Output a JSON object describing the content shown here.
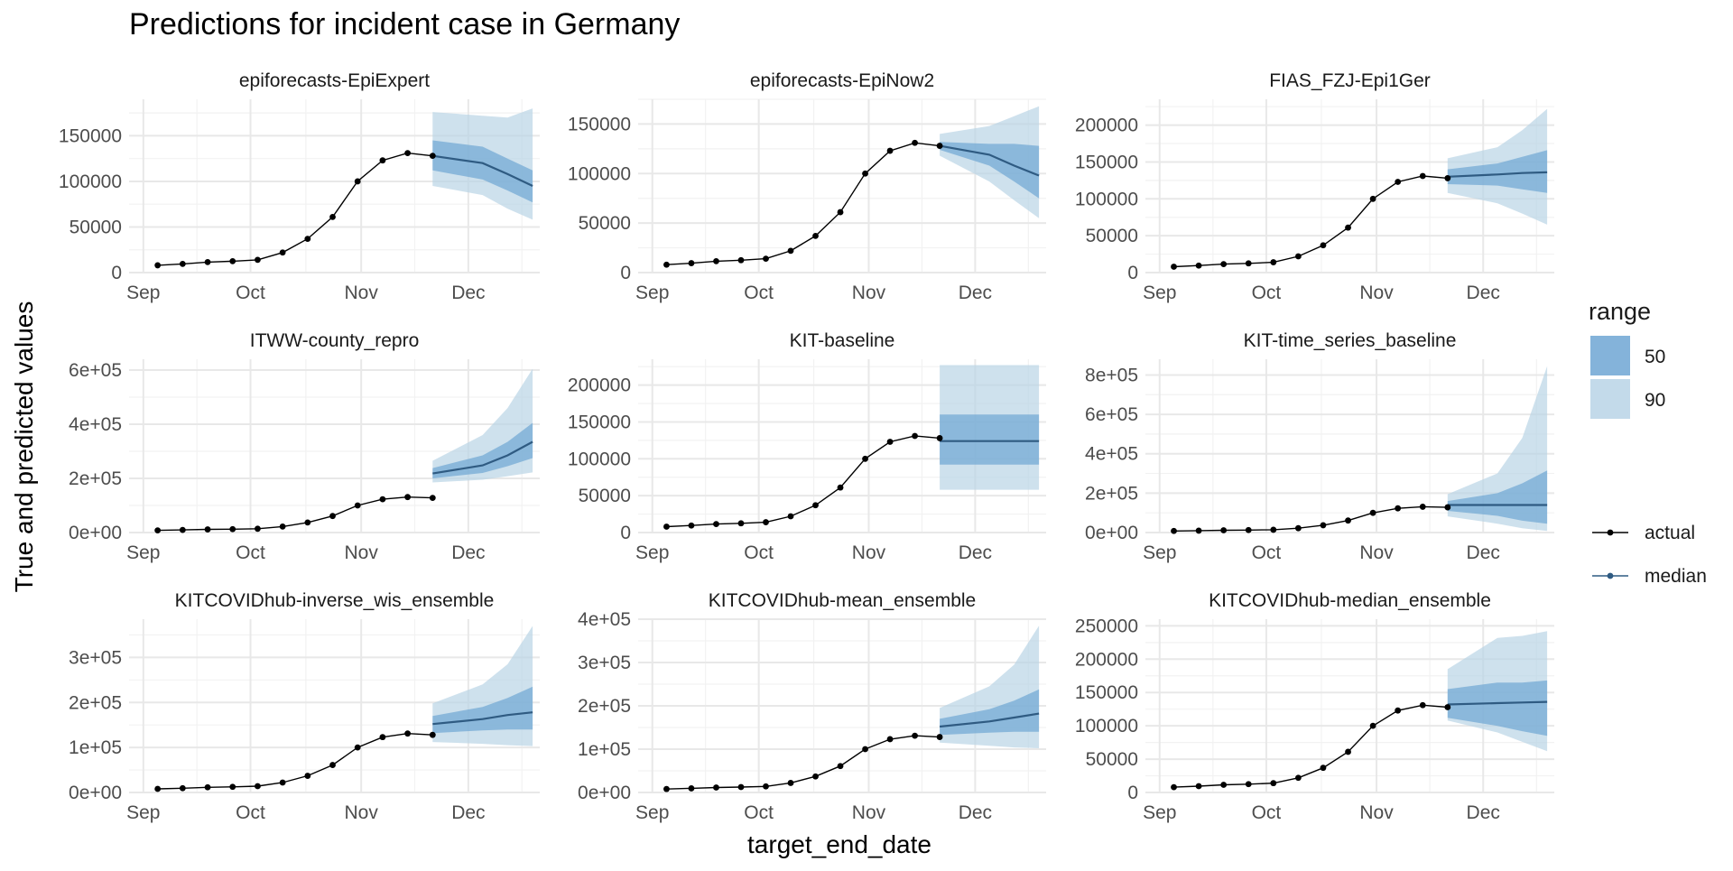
{
  "title": "Predictions for incident case in Germany",
  "xlabel": "target_end_date",
  "ylabel": "True and predicted values",
  "colors": {
    "actual": "#000000",
    "median": "#2F5B82",
    "band50": "#6FA6D3",
    "band90": "#B9D4E6",
    "grid_major": "#E8E8E8",
    "grid_minor": "#F2F2F2",
    "tick_text": "#4D4D4D",
    "text": "#1A1A1A"
  },
  "legend": {
    "range_title": "range",
    "range_items": [
      {
        "label": "50",
        "color_key": "band50"
      },
      {
        "label": "90",
        "color_key": "band90"
      }
    ],
    "line_items": [
      {
        "label": "actual",
        "color_key": "actual"
      },
      {
        "label": "median",
        "color_key": "median"
      }
    ]
  },
  "chart_data": {
    "type": "line",
    "facets": 9,
    "x_domain": [
      "2020-08-28",
      "2020-12-21"
    ],
    "x_ticks": [
      {
        "date": "2020-09-01",
        "label": "Sep"
      },
      {
        "date": "2020-10-01",
        "label": "Oct"
      },
      {
        "date": "2020-11-01",
        "label": "Nov"
      },
      {
        "date": "2020-12-01",
        "label": "Dec"
      }
    ],
    "actual": {
      "dates": [
        "2020-09-05",
        "2020-09-12",
        "2020-09-19",
        "2020-09-26",
        "2020-10-03",
        "2020-10-10",
        "2020-10-17",
        "2020-10-24",
        "2020-10-31",
        "2020-11-07",
        "2020-11-14",
        "2020-11-21"
      ],
      "values": [
        8000,
        9500,
        11500,
        12500,
        14000,
        22000,
        37000,
        61000,
        100000,
        123000,
        131000,
        128000
      ]
    },
    "forecast_dates": [
      "2020-11-21",
      "2020-11-28",
      "2020-12-05",
      "2020-12-12",
      "2020-12-19"
    ],
    "panels": [
      {
        "name": "epiforecasts-EpiExpert",
        "ylim": [
          0,
          190000
        ],
        "yticks": [
          0,
          50000,
          100000,
          150000
        ],
        "ytick_labels": [
          "0",
          "50000",
          "100000",
          "150000"
        ],
        "median": [
          128000,
          120000,
          108000,
          95000
        ],
        "lower50": [
          112000,
          102000,
          90000,
          77000
        ],
        "upper50": [
          145000,
          138000,
          125000,
          112000
        ],
        "lower90": [
          95000,
          85000,
          70000,
          58000
        ],
        "upper90": [
          176000,
          172000,
          170000,
          180000
        ]
      },
      {
        "name": "epiforecasts-EpiNow2",
        "ylim": [
          0,
          175000
        ],
        "yticks": [
          0,
          50000,
          100000,
          150000
        ],
        "ytick_labels": [
          "0",
          "50000",
          "100000",
          "150000"
        ],
        "median": [
          128000,
          119000,
          108000,
          98000
        ],
        "lower50": [
          124000,
          108000,
          92000,
          75000
        ],
        "upper50": [
          132000,
          130000,
          130000,
          128000
        ],
        "lower90": [
          118000,
          92000,
          73000,
          55000
        ],
        "upper90": [
          140000,
          148000,
          158000,
          168000
        ]
      },
      {
        "name": "FIAS_FZJ-Epi1Ger",
        "ylim": [
          0,
          235000
        ],
        "yticks": [
          0,
          50000,
          100000,
          150000,
          200000
        ],
        "ytick_labels": [
          "0",
          "50000",
          "100000",
          "150000",
          "200000"
        ],
        "median": [
          130000,
          133000,
          135000,
          136000
        ],
        "lower50": [
          120000,
          118000,
          113000,
          108000
        ],
        "upper50": [
          140000,
          148000,
          157000,
          166000
        ],
        "lower90": [
          108000,
          94000,
          80000,
          65000
        ],
        "upper90": [
          155000,
          170000,
          193000,
          222000
        ]
      },
      {
        "name": "ITWW-county_repro",
        "ylim": [
          0,
          640000
        ],
        "yticks": [
          0,
          200000,
          400000,
          600000
        ],
        "ytick_labels": [
          "0e+00",
          "2e+05",
          "4e+05",
          "6e+05"
        ],
        "median": [
          218000,
          248000,
          285000,
          335000
        ],
        "lower50": [
          200000,
          220000,
          245000,
          275000
        ],
        "upper50": [
          238000,
          285000,
          335000,
          405000
        ],
        "lower90": [
          185000,
          195000,
          208000,
          222000
        ],
        "upper90": [
          265000,
          360000,
          460000,
          605000
        ]
      },
      {
        "name": "KIT-baseline",
        "ylim": [
          0,
          235000
        ],
        "yticks": [
          0,
          50000,
          100000,
          150000,
          200000
        ],
        "ytick_labels": [
          "0",
          "50000",
          "100000",
          "150000",
          "200000"
        ],
        "median": [
          124000,
          124000,
          124000,
          124000
        ],
        "lower50": [
          92000,
          92000,
          92000,
          92000
        ],
        "upper50": [
          160000,
          160000,
          160000,
          160000
        ],
        "lower90": [
          58000,
          58000,
          58000,
          58000
        ],
        "upper90": [
          227000,
          227000,
          227000,
          227000
        ]
      },
      {
        "name": "KIT-time_series_baseline",
        "ylim": [
          0,
          880000
        ],
        "yticks": [
          0,
          200000,
          400000,
          600000,
          800000
        ],
        "ytick_labels": [
          "0e+00",
          "2e+05",
          "4e+05",
          "6e+05",
          "8e+05"
        ],
        "median": [
          140000,
          140000,
          140000,
          140000
        ],
        "lower50": [
          110000,
          85000,
          60000,
          45000
        ],
        "upper50": [
          160000,
          200000,
          250000,
          315000
        ],
        "lower90": [
          82000,
          45000,
          22000,
          8000
        ],
        "upper90": [
          195000,
          300000,
          480000,
          845000
        ]
      },
      {
        "name": "KITCOVIDhub-inverse_wis_ensemble",
        "ylim": [
          0,
          385000
        ],
        "yticks": [
          0,
          100000,
          200000,
          300000
        ],
        "ytick_labels": [
          "0e+00",
          "1e+05",
          "2e+05",
          "3e+05"
        ],
        "median": [
          152000,
          163000,
          172000,
          178000
        ],
        "lower50": [
          132000,
          138000,
          140000,
          140000
        ],
        "upper50": [
          170000,
          190000,
          210000,
          235000
        ],
        "lower90": [
          112000,
          108000,
          105000,
          103000
        ],
        "upper90": [
          198000,
          240000,
          285000,
          370000
        ]
      },
      {
        "name": "KITCOVIDhub-mean_ensemble",
        "ylim": [
          0,
          400000
        ],
        "yticks": [
          0,
          100000,
          200000,
          300000,
          400000
        ],
        "ytick_labels": [
          "0e+00",
          "1e+05",
          "2e+05",
          "3e+05",
          "4e+05"
        ],
        "median": [
          152000,
          164000,
          173000,
          182000
        ],
        "lower50": [
          133000,
          138000,
          140000,
          140000
        ],
        "upper50": [
          170000,
          192000,
          212000,
          238000
        ],
        "lower90": [
          115000,
          108000,
          104000,
          102000
        ],
        "upper90": [
          195000,
          245000,
          295000,
          385000
        ]
      },
      {
        "name": "KITCOVIDhub-median_ensemble",
        "ylim": [
          0,
          260000
        ],
        "yticks": [
          0,
          50000,
          100000,
          150000,
          200000,
          250000
        ],
        "ytick_labels": [
          "0",
          "50000",
          "100000",
          "150000",
          "200000",
          "250000"
        ],
        "median": [
          132000,
          134000,
          135000,
          136000
        ],
        "lower50": [
          112000,
          100000,
          92000,
          85000
        ],
        "upper50": [
          155000,
          165000,
          165000,
          168000
        ],
        "lower90": [
          108000,
          90000,
          76000,
          62000
        ],
        "upper90": [
          185000,
          232000,
          235000,
          242000
        ]
      }
    ]
  }
}
